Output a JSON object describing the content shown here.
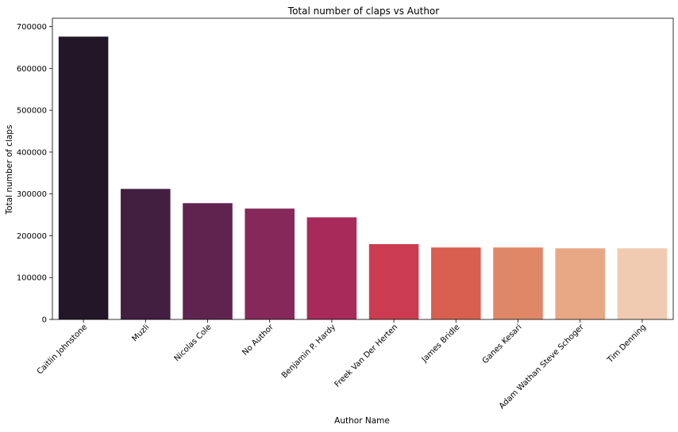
{
  "chart_data": {
    "type": "bar",
    "title": "Total number of claps vs Author",
    "xlabel": "Author Name",
    "ylabel": "Total number of claps",
    "categories": [
      "Caitlin Johnstone",
      "Muzli",
      "Nicolas Cole",
      "No Author",
      "Benjamin P. Hardy",
      "Freek Van Der Herten",
      "James Bridle",
      "Ganes Kesari",
      "Adam Wathan Steve Schoger",
      "Tim Denning"
    ],
    "values": [
      676000,
      312000,
      278000,
      265000,
      244000,
      180000,
      172000,
      172000,
      170000,
      170000
    ],
    "colors": [
      "#231628",
      "#421e41",
      "#602350",
      "#86285a",
      "#a72a5a",
      "#cb3c51",
      "#d95f50",
      "#e08767",
      "#e8a885",
      "#f0cbb2"
    ],
    "ylim": [
      0,
      720000
    ],
    "yticks": [
      0,
      100000,
      200000,
      300000,
      400000,
      500000,
      600000,
      700000
    ],
    "grid": false,
    "legend": "none"
  }
}
